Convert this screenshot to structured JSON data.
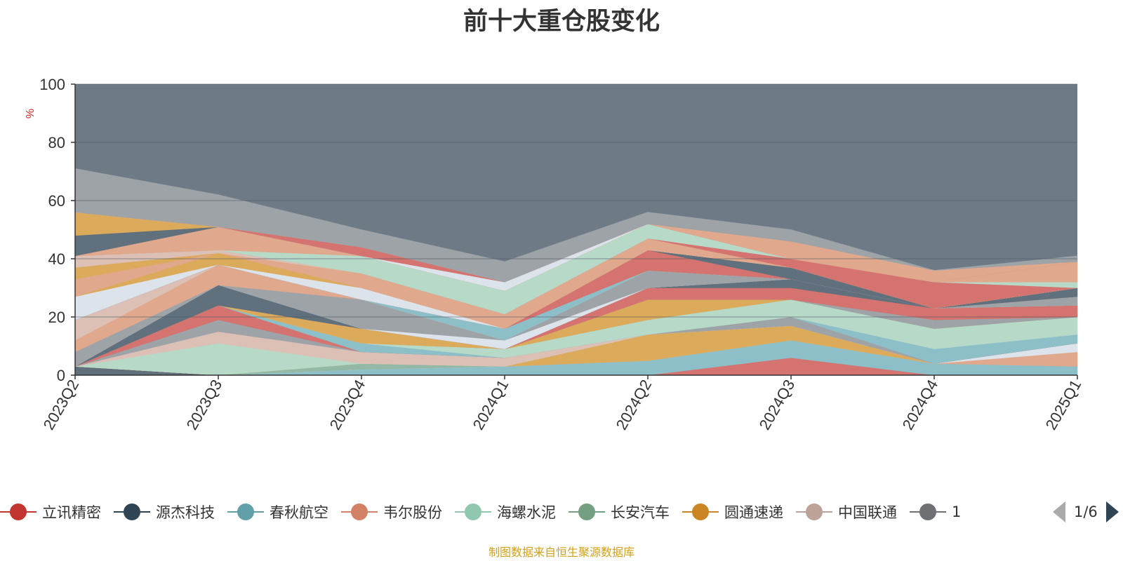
{
  "chart_data": {
    "type": "area",
    "title": "前十大重仓股变化",
    "ylabel": "%",
    "ylim": [
      0,
      100
    ],
    "yticks": [
      0,
      20,
      40,
      60,
      80,
      100
    ],
    "categories": [
      "2023Q2",
      "2023Q3",
      "2023Q4",
      "2024Q1",
      "2024Q2",
      "2024Q3",
      "2024Q4",
      "2025Q1"
    ],
    "grid": true,
    "stacked": true,
    "legend_position": "bottom",
    "legend_page": "1/6",
    "remainder_color": "#6e7b87",
    "series": [
      {
        "name": "",
        "color": "#60707d",
        "values": [
          3,
          0,
          0,
          0,
          0,
          0,
          0,
          0
        ]
      },
      {
        "name": "",
        "color": "#d4736f",
        "values": [
          0,
          0,
          0,
          0,
          0,
          6,
          0,
          0
        ]
      },
      {
        "name": "",
        "color": "#8dbfc8",
        "values": [
          0,
          0,
          2,
          3,
          5,
          6,
          4,
          3
        ]
      },
      {
        "name": "",
        "color": "#e0a88c",
        "values": [
          0,
          0,
          0,
          0,
          0,
          0,
          0,
          5
        ]
      },
      {
        "name": "",
        "color": "#dde3ea",
        "values": [
          0,
          0,
          0,
          0,
          0,
          0,
          0,
          3
        ]
      },
      {
        "name": "",
        "color": "#93b8a5",
        "values": [
          0,
          0,
          2,
          0,
          0,
          0,
          0,
          0
        ]
      },
      {
        "name": "",
        "color": "#dcaa5b",
        "values": [
          0,
          0,
          0,
          0,
          9,
          5,
          0,
          0
        ]
      },
      {
        "name": "",
        "color": "#b6d9c8",
        "values": [
          0,
          11,
          0,
          0,
          0,
          0,
          0,
          0
        ]
      },
      {
        "name": "",
        "color": "#dcc0b6",
        "values": [
          0,
          4,
          4,
          3,
          0,
          0,
          0,
          0
        ]
      },
      {
        "name": "",
        "color": "#9ea3a7",
        "values": [
          0,
          4,
          0,
          0,
          0,
          3,
          0,
          0
        ]
      },
      {
        "name": "",
        "color": "#d4736f",
        "values": [
          0,
          5,
          0,
          0,
          0,
          0,
          0,
          0
        ]
      },
      {
        "name": "",
        "color": "#8dbfc8",
        "values": [
          0,
          0,
          3,
          0,
          0,
          0,
          5,
          3
        ]
      },
      {
        "name": "",
        "color": "#b6d9c8",
        "values": [
          0,
          0,
          0,
          3,
          5,
          6,
          7,
          6
        ]
      },
      {
        "name": "",
        "color": "#dcaa5b",
        "values": [
          0,
          0,
          5,
          0,
          7,
          0,
          0,
          0
        ]
      },
      {
        "name": "",
        "color": "#9ea3a7",
        "values": [
          0,
          0,
          0,
          0,
          0,
          0,
          3,
          0
        ]
      },
      {
        "name": "",
        "color": "#d4736f",
        "values": [
          0,
          0,
          0,
          0,
          4,
          4,
          4,
          4
        ]
      },
      {
        "name": "",
        "color": "#60707d",
        "values": [
          0,
          7,
          0,
          0,
          0,
          3,
          0,
          0
        ]
      },
      {
        "name": "",
        "color": "#dde3ea",
        "values": [
          0,
          0,
          0,
          3,
          0,
          0,
          0,
          0
        ]
      },
      {
        "name": "",
        "color": "#9ea3a7",
        "values": [
          5,
          0,
          10,
          0,
          6,
          0,
          0,
          3
        ]
      },
      {
        "name": "",
        "color": "#e0a88c",
        "values": [
          4,
          7,
          0,
          0,
          0,
          0,
          0,
          0
        ]
      },
      {
        "name": "",
        "color": "#dcc0b6",
        "values": [
          7,
          0,
          0,
          0,
          0,
          0,
          0,
          0
        ]
      },
      {
        "name": "",
        "color": "#8dbfc8",
        "values": [
          0,
          0,
          0,
          4,
          0,
          0,
          0,
          0
        ]
      },
      {
        "name": "",
        "color": "#d4736f",
        "values": [
          0,
          0,
          0,
          0,
          7,
          0,
          0,
          0
        ]
      },
      {
        "name": "",
        "color": "#60707d",
        "values": [
          0,
          0,
          0,
          0,
          0,
          4,
          0,
          3
        ]
      },
      {
        "name": "",
        "color": "#dde3ea",
        "values": [
          8,
          0,
          4,
          0,
          0,
          0,
          0,
          0
        ]
      },
      {
        "name": "",
        "color": "#dcaa5b",
        "values": [
          0,
          4,
          0,
          0,
          0,
          0,
          0,
          0
        ]
      },
      {
        "name": "",
        "color": "#e0a88c",
        "values": [
          6,
          0,
          5,
          5,
          4,
          0,
          0,
          0
        ]
      },
      {
        "name": "",
        "color": "#dcaa5b",
        "values": [
          4,
          0,
          0,
          0,
          0,
          0,
          0,
          0
        ]
      },
      {
        "name": "",
        "color": "#dcc0b6",
        "values": [
          4,
          1,
          0,
          0,
          0,
          0,
          0,
          0
        ]
      },
      {
        "name": "",
        "color": "#d4736f",
        "values": [
          0,
          0,
          0,
          0,
          0,
          3,
          9,
          0
        ]
      },
      {
        "name": "",
        "color": "#b6d9c8",
        "values": [
          0,
          0,
          6,
          8,
          5,
          0,
          0,
          2
        ]
      },
      {
        "name": "",
        "color": "#e0a88c",
        "values": [
          0,
          8,
          0,
          0,
          0,
          0,
          0,
          7
        ]
      },
      {
        "name": "",
        "color": "#60707d",
        "values": [
          7,
          0,
          0,
          0,
          0,
          0,
          0,
          0
        ]
      },
      {
        "name": "",
        "color": "#dcaa5b",
        "values": [
          8,
          0,
          0,
          0,
          0,
          0,
          0,
          0
        ]
      },
      {
        "name": "",
        "color": "#dde3ea",
        "values": [
          0,
          0,
          0,
          3,
          0,
          0,
          0,
          0
        ]
      },
      {
        "name": "",
        "color": "#d4736f",
        "values": [
          0,
          0,
          3,
          0,
          0,
          0,
          0,
          0
        ]
      },
      {
        "name": "",
        "color": "#e0a88c",
        "values": [
          0,
          0,
          0,
          0,
          0,
          6,
          4,
          0
        ]
      },
      {
        "name": "",
        "color": "#9ea3a7",
        "values": [
          15,
          11,
          6,
          7,
          4,
          4,
          0,
          2
        ]
      }
    ],
    "legend": [
      {
        "name": "立讯精密",
        "color": "#c23531"
      },
      {
        "name": "源杰科技",
        "color": "#2f4554"
      },
      {
        "name": "春秋航空",
        "color": "#61a0a8"
      },
      {
        "name": "韦尔股份",
        "color": "#d48265"
      },
      {
        "name": "海螺水泥",
        "color": "#91c7ae"
      },
      {
        "name": "长安汽车",
        "color": "#749f83"
      },
      {
        "name": "圆通速递",
        "color": "#ca8622"
      },
      {
        "name": "中国联通",
        "color": "#bda29a"
      },
      {
        "name": "1",
        "color": "#6e7074"
      }
    ]
  },
  "footer": {
    "source": "制图数据来自恒生聚源数据库"
  }
}
